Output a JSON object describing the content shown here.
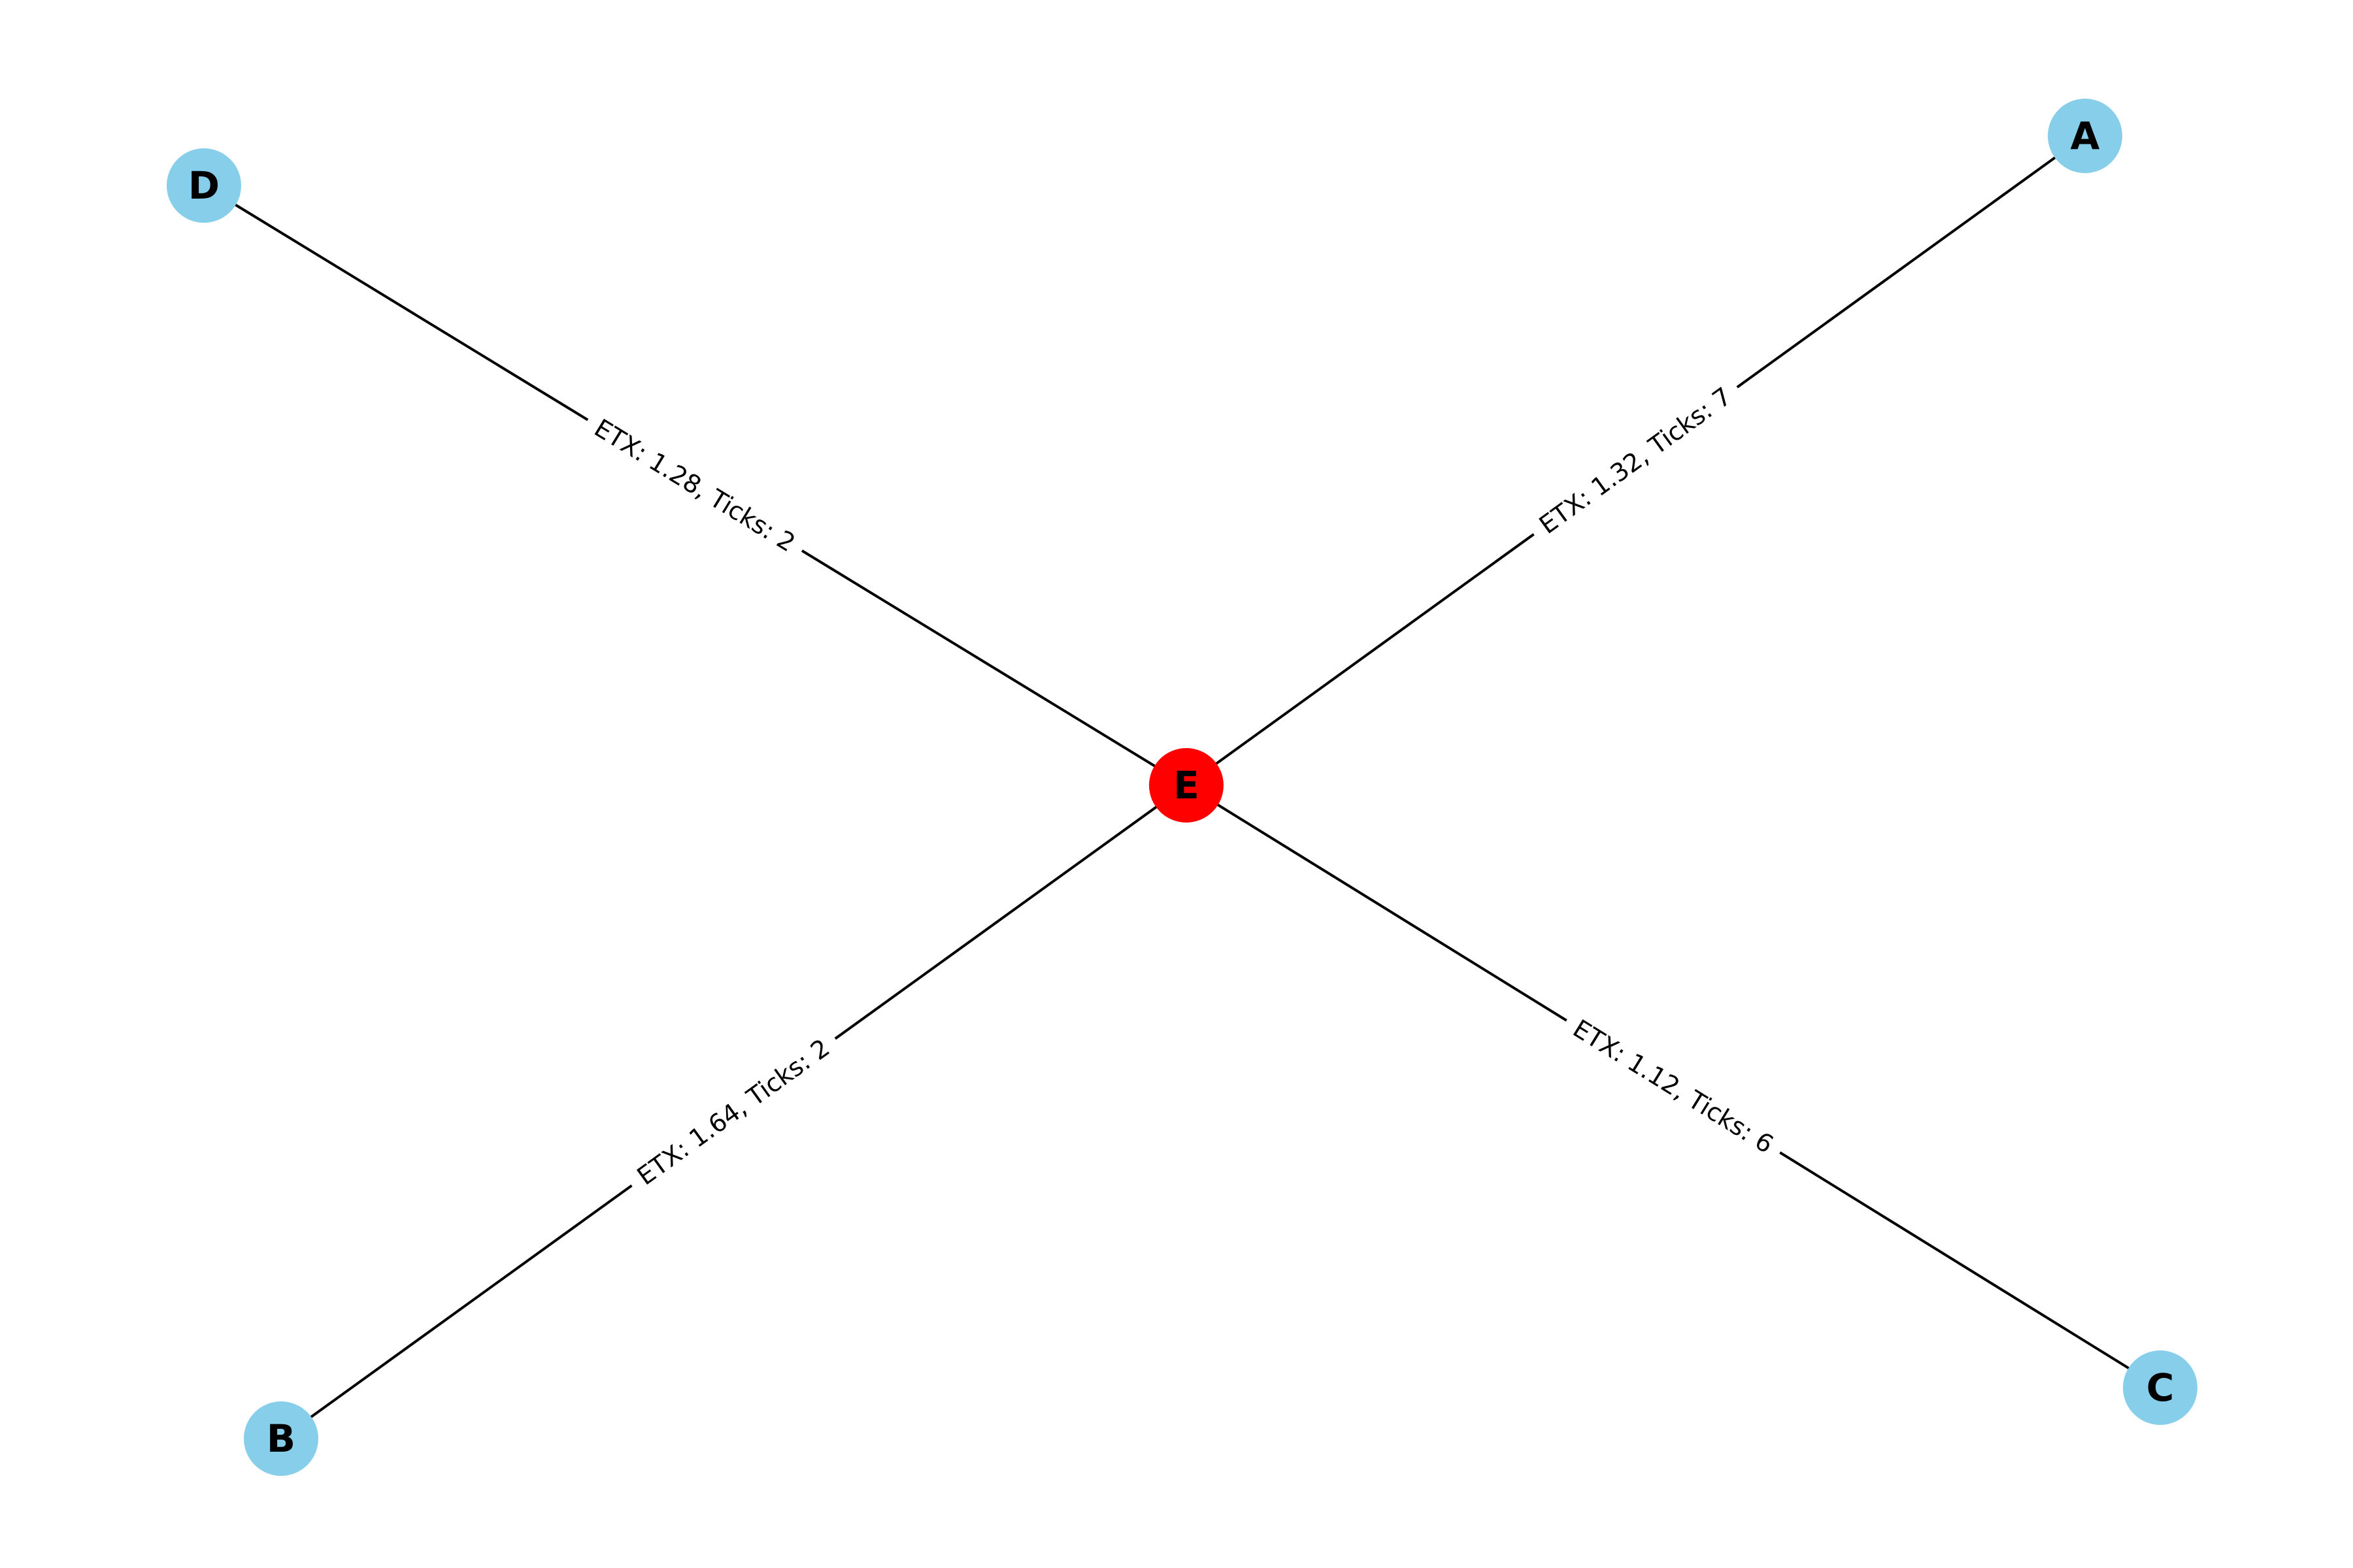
{
  "graph": {
    "colors": {
      "default_node": "#87ceeb",
      "highlight_node": "#ff0000",
      "edge": "#000000"
    },
    "nodes": [
      {
        "id": "A",
        "label": "A",
        "highlight": false
      },
      {
        "id": "B",
        "label": "B",
        "highlight": false
      },
      {
        "id": "C",
        "label": "C",
        "highlight": false
      },
      {
        "id": "D",
        "label": "D",
        "highlight": false
      },
      {
        "id": "E",
        "label": "E",
        "highlight": true
      }
    ],
    "edges": [
      {
        "source": "E",
        "target": "A",
        "label": "ETX: 1.32, Ticks: 7"
      },
      {
        "source": "E",
        "target": "B",
        "label": "ETX: 1.64, Ticks: 2"
      },
      {
        "source": "E",
        "target": "C",
        "label": "ETX: 1.12, Ticks: 6"
      },
      {
        "source": "E",
        "target": "D",
        "label": "ETX: 1.28, Ticks: 2"
      }
    ]
  }
}
